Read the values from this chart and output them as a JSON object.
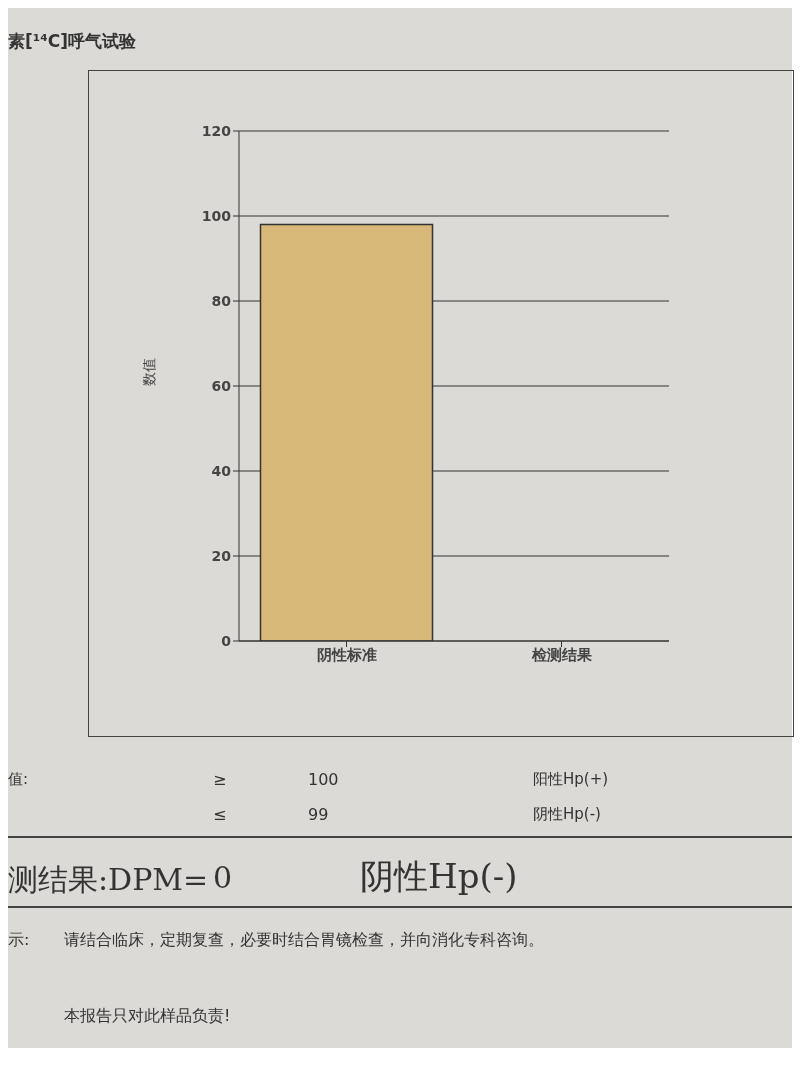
{
  "chart_data": {
    "type": "bar",
    "title": "素[¹⁴C]呼气试验",
    "ylabel": "数值",
    "categories": [
      "阴性标准",
      "检测结果"
    ],
    "values": [
      98,
      0
    ],
    "color": "#d8b878",
    "ylim": [
      0,
      120
    ],
    "yticks": [
      0,
      20,
      40,
      60,
      80,
      100,
      120
    ],
    "grid": "y",
    "annotations": [
      "值:",
      "≥",
      "100",
      "阳性Hp(+)",
      "≤",
      "99",
      "阴性Hp(-)",
      "测结果:DPM=",
      "0",
      "阴性Hp(-)",
      "示:",
      "请结合临床，定期复查，必要时结合胃镜检查，并向消化专科咨询。",
      "本报告只对此样品负责!"
    ]
  }
}
